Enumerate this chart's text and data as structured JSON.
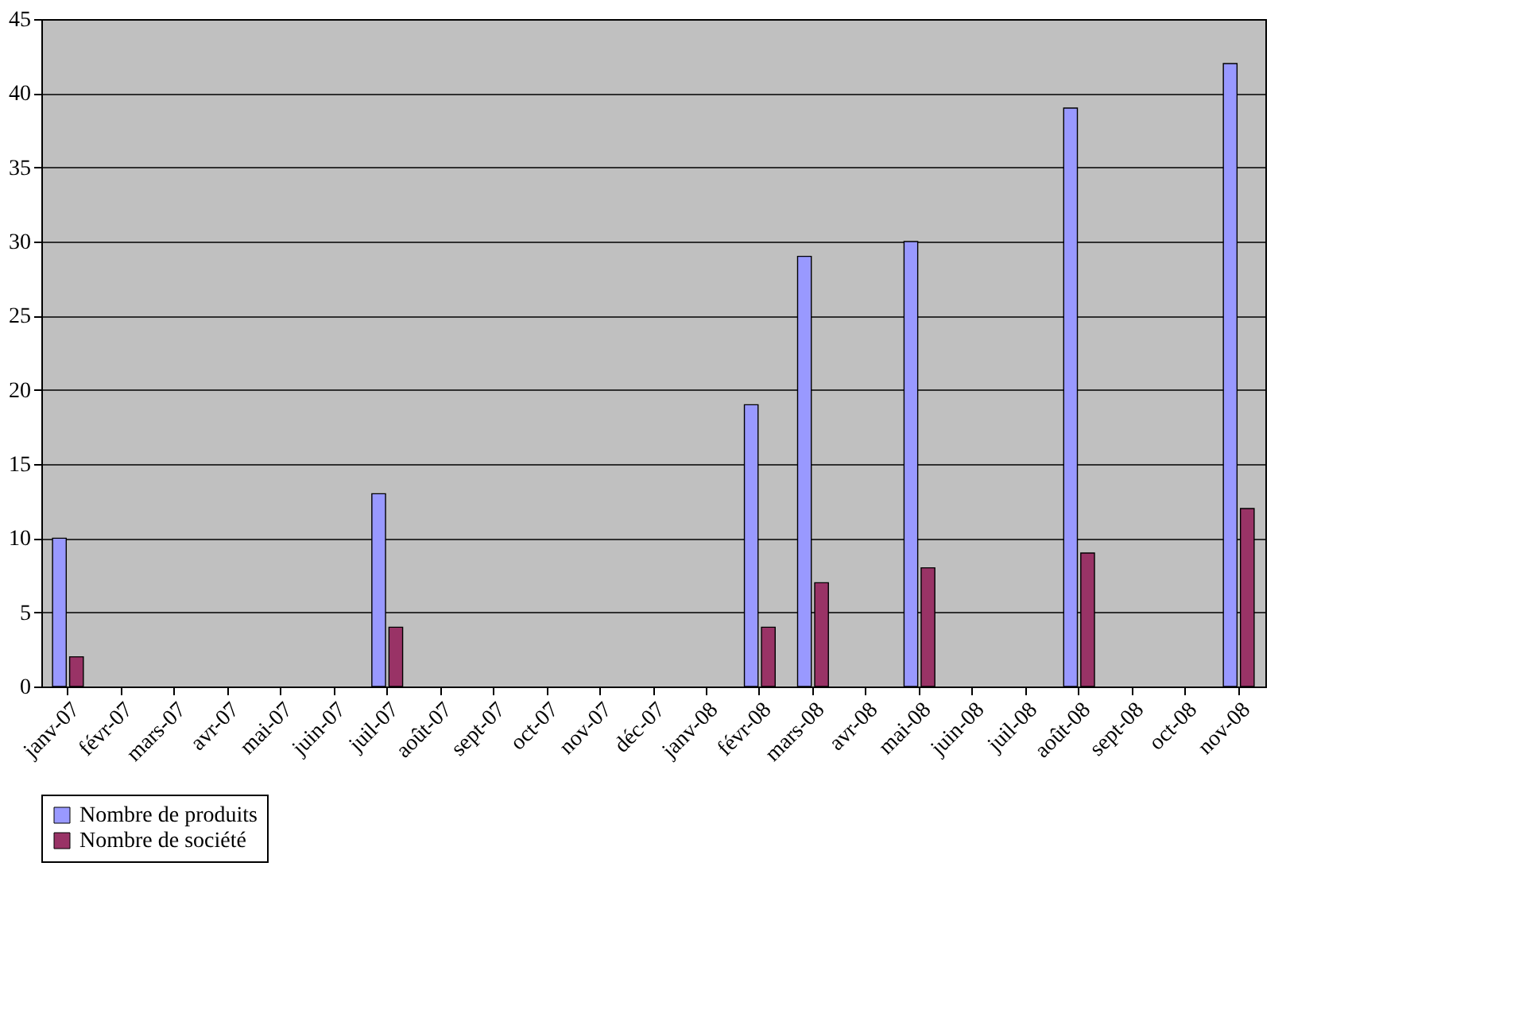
{
  "chart_data": {
    "type": "bar",
    "categories": [
      "janv-07",
      "févr-07",
      "mars-07",
      "avr-07",
      "mai-07",
      "juin-07",
      "juil-07",
      "août-07",
      "sept-07",
      "oct-07",
      "nov-07",
      "déc-07",
      "janv-08",
      "févr-08",
      "mars-08",
      "avr-08",
      "mai-08",
      "juin-08",
      "juil-08",
      "août-08",
      "sept-08",
      "oct-08",
      "nov-08"
    ],
    "series": [
      {
        "name": "Nombre de produits",
        "color": "#9999ff",
        "values": [
          10,
          null,
          null,
          null,
          null,
          null,
          13,
          null,
          null,
          null,
          null,
          null,
          null,
          19,
          29,
          null,
          30,
          null,
          null,
          39,
          null,
          null,
          42
        ]
      },
      {
        "name": "Nombre de société",
        "color": "#993366",
        "values": [
          2,
          null,
          null,
          null,
          null,
          null,
          4,
          null,
          null,
          null,
          null,
          null,
          null,
          4,
          7,
          null,
          8,
          null,
          null,
          9,
          null,
          null,
          12
        ]
      }
    ],
    "ylim": [
      0,
      45
    ],
    "yticks": [
      0,
      5,
      10,
      15,
      20,
      25,
      30,
      35,
      40,
      45
    ],
    "grid": "y",
    "legend": "bottom"
  }
}
